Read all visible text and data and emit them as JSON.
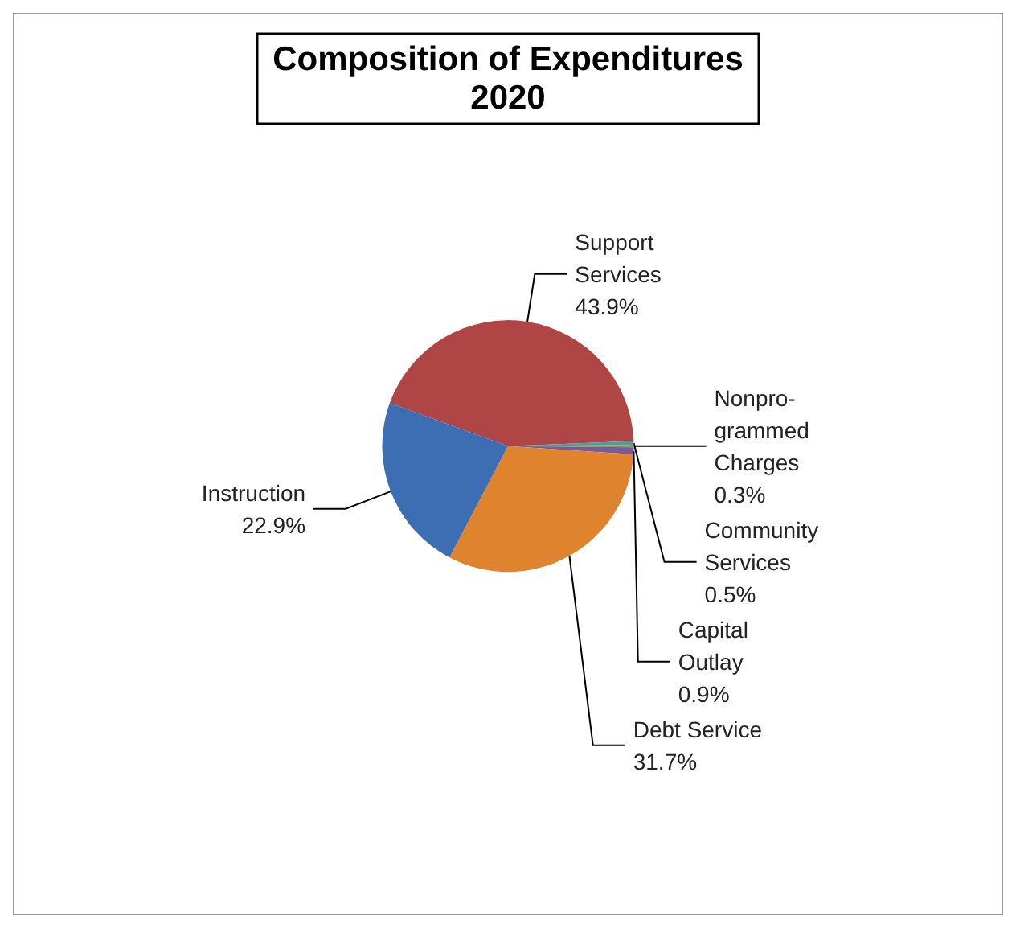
{
  "chart_data": {
    "type": "pie",
    "title": "Composition of Expenditures\n2020",
    "categories": [
      "Support\nServices",
      "Community\nServices",
      "Nonpro-\ngrammed\nCharges",
      "Capital\nOutlay",
      "Debt Service",
      "Instruction"
    ],
    "values": [
      43.9,
      0.5,
      0.3,
      0.9,
      31.7,
      22.9
    ],
    "colors": [
      "#b04545",
      "#4f9aa6",
      "#7d9a4a",
      "#7a5a9a",
      "#e0832f",
      "#3d6eb3"
    ],
    "value_labels": [
      "43.9%",
      "0.5%",
      "0.3%",
      "0.9%",
      "31.7%",
      "22.9%"
    ],
    "legend": false
  }
}
